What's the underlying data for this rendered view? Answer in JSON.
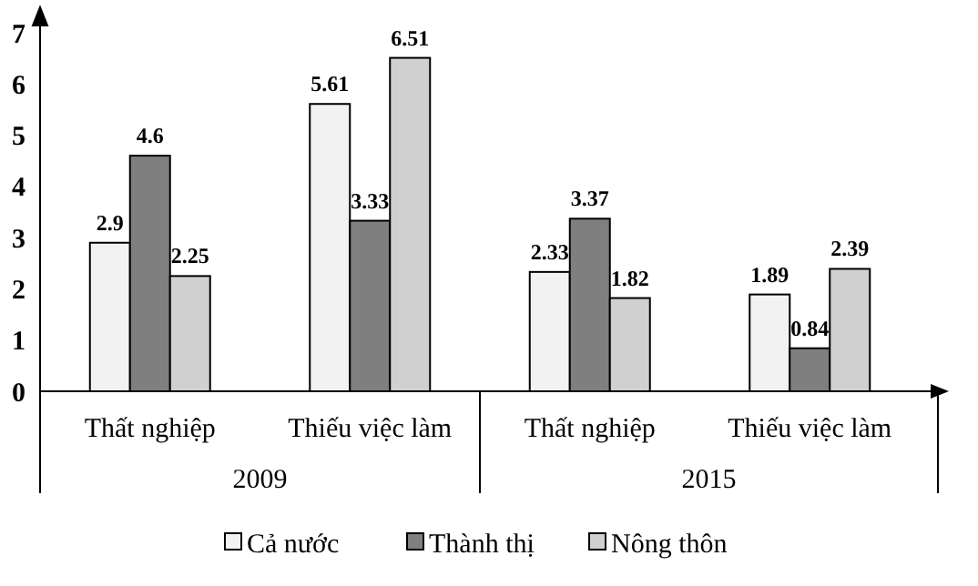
{
  "chart_data": {
    "type": "bar",
    "categories": [
      "Thất nghiệp",
      "Thiếu việc làm",
      "Thất nghiệp",
      "Thiếu việc làm"
    ],
    "series": [
      {
        "name": "Cả nước",
        "color": "#f2f2f2",
        "values": [
          2.9,
          5.61,
          2.33,
          1.89
        ]
      },
      {
        "name": "Thành thị",
        "color": "#7f7f7f",
        "values": [
          4.6,
          3.33,
          3.37,
          0.84
        ]
      },
      {
        "name": "Nông thôn",
        "color": "#d0d0d0",
        "values": [
          2.25,
          6.51,
          1.82,
          2.39
        ]
      }
    ],
    "ylim": [
      0,
      7
    ],
    "yticks": [
      0,
      1,
      2,
      3,
      4,
      5,
      6,
      7
    ],
    "data_labels": true,
    "grid": false,
    "legend": "bottom",
    "annotations": [
      "2009",
      "2015"
    ]
  }
}
